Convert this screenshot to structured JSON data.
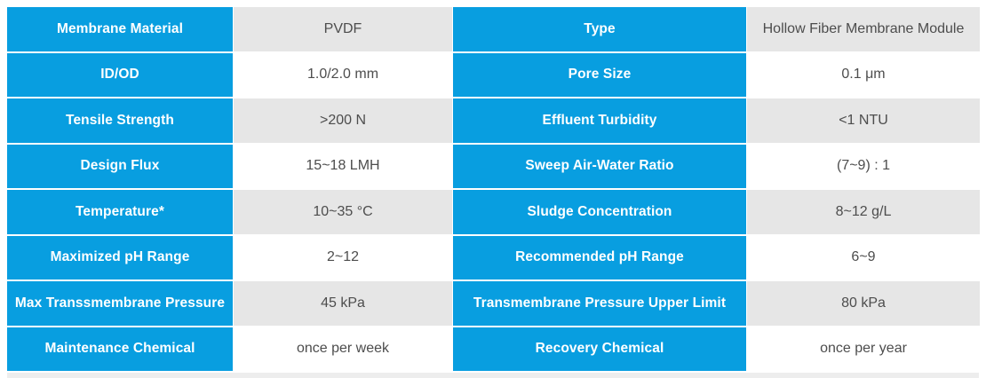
{
  "colors": {
    "accent": "#089ee0",
    "cell_gray": "#e6e6e6",
    "value_text": "#4d4d4d",
    "label_text": "#ffffff",
    "page_bg": "#ffffff"
  },
  "table": {
    "rows": [
      {
        "left_label": "Membrane Material",
        "left_value": "PVDF",
        "right_label": "Type",
        "right_value": "Hollow Fiber Membrane Module"
      },
      {
        "left_label": "ID/OD",
        "left_value": "1.0/2.0 mm",
        "right_label": "Pore Size",
        "right_value": "0.1 μm"
      },
      {
        "left_label": "Tensile Strength",
        "left_value": ">200 N",
        "right_label": "Effluent Turbidity",
        "right_value": "<1 NTU"
      },
      {
        "left_label": "Design Flux",
        "left_value": "15~18 LMH",
        "right_label": "Sweep Air-Water Ratio",
        "right_value": "(7~9) : 1"
      },
      {
        "left_label": "Temperature*",
        "left_value": "10~35 °C",
        "right_label": "Sludge Concentration",
        "right_value": "8~12 g/L"
      },
      {
        "left_label": "Maximized pH Range",
        "left_value": "2~12",
        "right_label": "Recommended pH Range",
        "right_value": "6~9"
      },
      {
        "left_label": "Max Transsmembrane Pressure",
        "left_value": "45 kPa",
        "right_label": "Transmembrane Pressure Upper Limit",
        "right_value": "80 kPa"
      },
      {
        "left_label": "Maintenance Chemical",
        "left_value": "once per week",
        "right_label": "Recovery Chemical",
        "right_value": "once per year"
      }
    ]
  }
}
